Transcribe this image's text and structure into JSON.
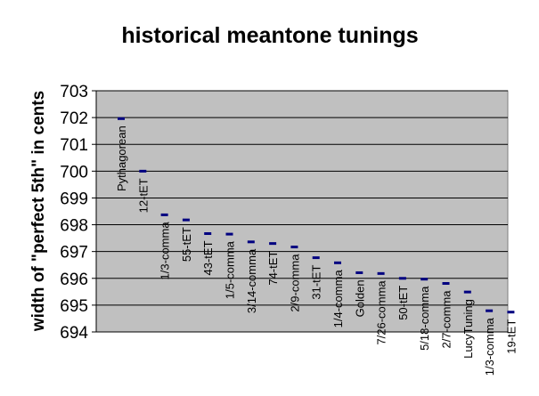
{
  "chart_data": {
    "type": "scatter",
    "title": "historical meantone tunings",
    "xlabel": "",
    "ylabel": "width of \"perfect 5th\" in cents",
    "ylim": [
      694,
      703
    ],
    "yticks": [
      694,
      695,
      696,
      697,
      698,
      699,
      700,
      701,
      702,
      703
    ],
    "grid": true,
    "legend": "none",
    "plot_background": "#c0c0c0",
    "marker_color": "#000080",
    "categories": [
      "Pythagorean",
      "12-tET",
      "1/3-comma",
      "55-tET",
      "43-tET",
      "1/5-comma",
      "3/14-comma",
      "74-tET",
      "2/9-comma",
      "31-tET",
      "1/4-comma",
      "Golden",
      "7/26-comma",
      "50-tET",
      "5/18-comma",
      "2/7-comma",
      "LucyTuning",
      "1/3-comma",
      "19-tET"
    ],
    "values": [
      701.96,
      700.0,
      698.37,
      698.18,
      697.67,
      697.65,
      697.36,
      697.3,
      697.17,
      696.77,
      696.58,
      696.21,
      696.18,
      696.0,
      695.97,
      695.81,
      695.49,
      694.79,
      694.74
    ]
  }
}
